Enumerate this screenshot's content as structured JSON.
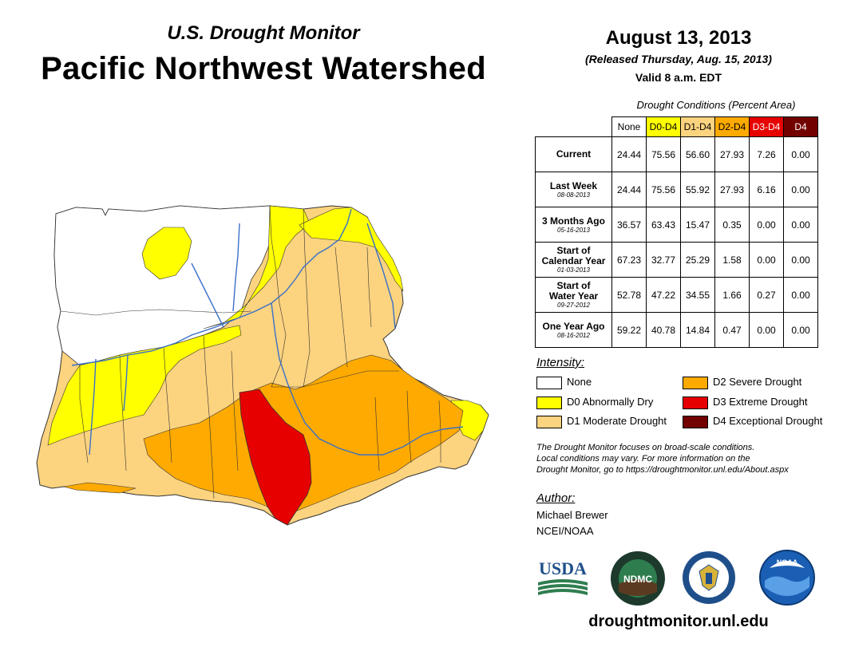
{
  "header": {
    "subtitle": "U.S. Drought Monitor",
    "title": "Pacific Northwest Watershed",
    "date": "August 13, 2013",
    "released": "(Released Thursday, Aug. 15, 2013)",
    "valid": "Valid 8 a.m. EDT"
  },
  "table": {
    "caption": "Drought Conditions (Percent Area)",
    "columns": [
      {
        "label": "None",
        "color": "#ffffff",
        "text_color": "#000000"
      },
      {
        "label": "D0-D4",
        "color": "#ffff00",
        "text_color": "#000000"
      },
      {
        "label": "D1-D4",
        "color": "#fcd37f",
        "text_color": "#000000"
      },
      {
        "label": "D2-D4",
        "color": "#ffaa00",
        "text_color": "#000000"
      },
      {
        "label": "D3-D4",
        "color": "#e60000",
        "text_color": "#ffffff"
      },
      {
        "label": "D4",
        "color": "#730000",
        "text_color": "#ffffff"
      }
    ],
    "rows": [
      {
        "label": "Current",
        "label2": "",
        "date": "",
        "values": [
          "24.44",
          "75.56",
          "56.60",
          "27.93",
          "7.26",
          "0.00"
        ]
      },
      {
        "label": "Last Week",
        "label2": "",
        "date": "08-08-2013",
        "values": [
          "24.44",
          "75.56",
          "55.92",
          "27.93",
          "6.16",
          "0.00"
        ]
      },
      {
        "label": "3 Months Ago",
        "label2": "",
        "date": "05-16-2013",
        "values": [
          "36.57",
          "63.43",
          "15.47",
          "0.35",
          "0.00",
          "0.00"
        ]
      },
      {
        "label": "Start of",
        "label2": "Calendar Year",
        "date": "01-03-2013",
        "values": [
          "67.23",
          "32.77",
          "25.29",
          "1.58",
          "0.00",
          "0.00"
        ]
      },
      {
        "label": "Start of",
        "label2": "Water Year",
        "date": "09-27-2012",
        "values": [
          "52.78",
          "47.22",
          "34.55",
          "1.66",
          "0.27",
          "0.00"
        ]
      },
      {
        "label": "One Year Ago",
        "label2": "",
        "date": "08-16-2012",
        "values": [
          "59.22",
          "40.78",
          "14.84",
          "0.47",
          "0.00",
          "0.00"
        ]
      }
    ]
  },
  "legend": {
    "heading": "Intensity:",
    "items": [
      {
        "label": "None",
        "color": "#ffffff"
      },
      {
        "label": "D0 Abnormally Dry",
        "color": "#ffff00"
      },
      {
        "label": "D1 Moderate Drought",
        "color": "#fcd37f"
      },
      {
        "label": "D2 Severe Drought",
        "color": "#ffaa00"
      },
      {
        "label": "D3 Extreme Drought",
        "color": "#e60000"
      },
      {
        "label": "D4 Exceptional Drought",
        "color": "#730000"
      }
    ]
  },
  "note": {
    "line1": "The Drought Monitor focuses on broad-scale conditions.",
    "line2": "Local conditions may vary. For more information on the",
    "line3": "Drought Monitor, go to https://droughtmonitor.unl.edu/About.aspx"
  },
  "author": {
    "heading": "Author:",
    "name": "Michael Brewer",
    "org": "NCEI/NOAA"
  },
  "logos": {
    "usda": "USDA",
    "ndmc": "NDMC",
    "noaa": "NOAA",
    "usda_icon": "usda-logo-icon",
    "ndmc_icon": "ndmc-logo-icon",
    "doc_icon": "commerce-seal-icon",
    "noaa_icon": "noaa-logo-icon"
  },
  "footer": {
    "website": "droughtmonitor.unl.edu"
  }
}
